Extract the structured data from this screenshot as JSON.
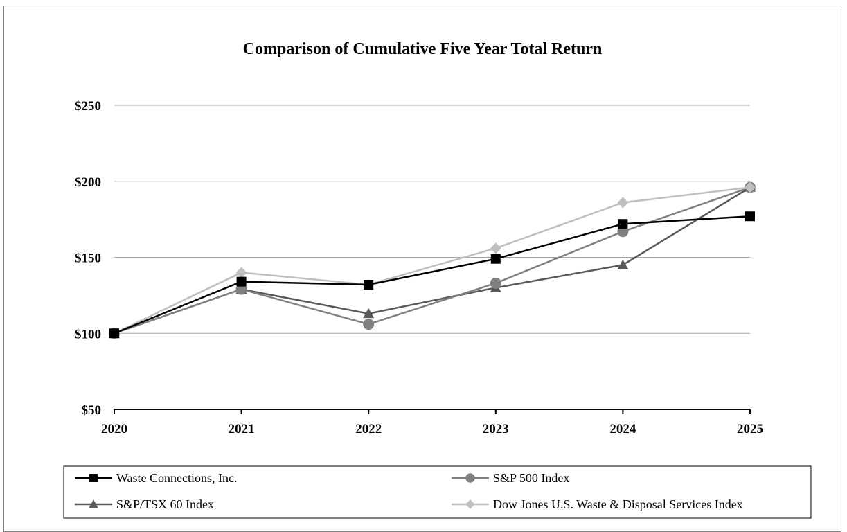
{
  "chart_data": {
    "type": "line",
    "title": "Comparison of Cumulative Five Year Total Return",
    "xlabel": "",
    "ylabel": "",
    "x": [
      "2020",
      "2021",
      "2022",
      "2023",
      "2024",
      "2025"
    ],
    "ylim": [
      50,
      250
    ],
    "y_ticks": [
      50,
      100,
      150,
      200,
      250
    ],
    "y_tick_labels": [
      "$50",
      "$100",
      "$150",
      "$200",
      "$250"
    ],
    "grid": "horizontal",
    "legend_position": "bottom",
    "series": [
      {
        "name": "Waste Connections, Inc.",
        "marker": "square",
        "color": "#000000",
        "values": [
          100,
          134,
          132,
          149,
          172,
          177
        ]
      },
      {
        "name": "S&P 500 Index",
        "marker": "circle",
        "color": "#808080",
        "values": [
          100,
          129,
          106,
          133,
          167,
          196
        ]
      },
      {
        "name": "S&P/TSX 60 Index",
        "marker": "triangle",
        "color": "#595959",
        "values": [
          100,
          129,
          113,
          130,
          145,
          196
        ]
      },
      {
        "name": "Dow Jones U.S. Waste & Disposal Services Index",
        "marker": "diamond",
        "color": "#bfbfbf",
        "values": [
          100,
          140,
          132,
          156,
          186,
          196
        ]
      }
    ]
  }
}
